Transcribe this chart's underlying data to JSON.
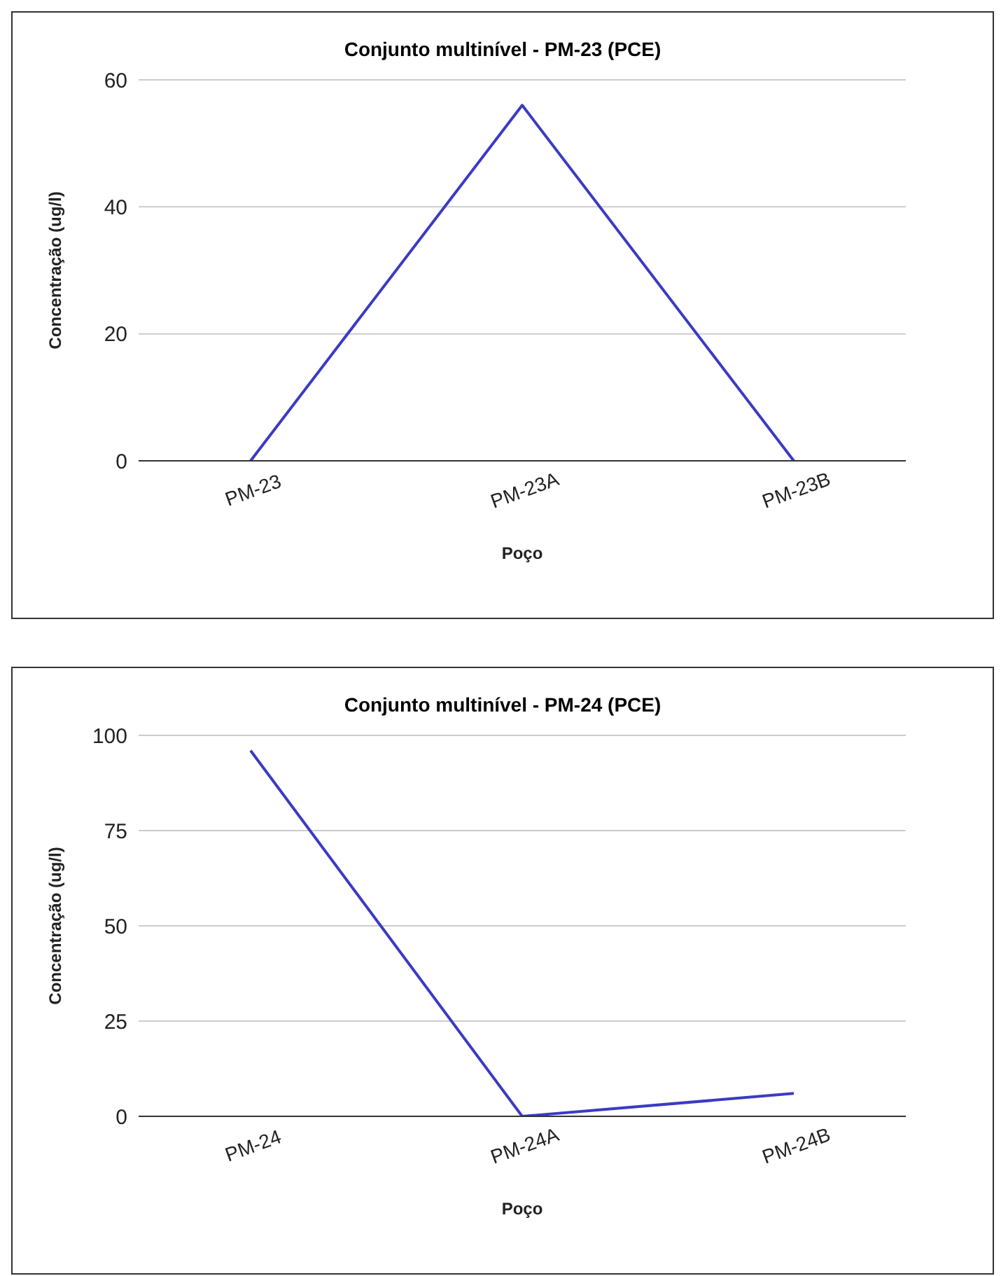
{
  "chart_data": [
    {
      "type": "line",
      "title": "Conjunto multinível - PM-23 (PCE)",
      "xlabel": "Poço",
      "ylabel": "Concentração (ug/l)",
      "categories": [
        "PM-23",
        "PM-23A",
        "PM-23B"
      ],
      "series": [
        {
          "color": "#3b3bc4",
          "values": [
            0,
            56,
            0
          ]
        }
      ],
      "ylim": [
        0,
        60
      ],
      "yticks": [
        0,
        20,
        40,
        60
      ],
      "grid": "y",
      "marker": "none"
    },
    {
      "type": "line",
      "title": "Conjunto multinível - PM-24 (PCE)",
      "xlabel": "Poço",
      "ylabel": "Concentração (ug/l)",
      "categories": [
        "PM-24",
        "PM-24A",
        "PM-24B"
      ],
      "series": [
        {
          "color": "#3b3bc4",
          "values": [
            96,
            0,
            6
          ]
        }
      ],
      "ylim": [
        0,
        100
      ],
      "yticks": [
        0,
        25,
        50,
        75,
        100
      ],
      "grid": "y",
      "marker": "none"
    }
  ]
}
